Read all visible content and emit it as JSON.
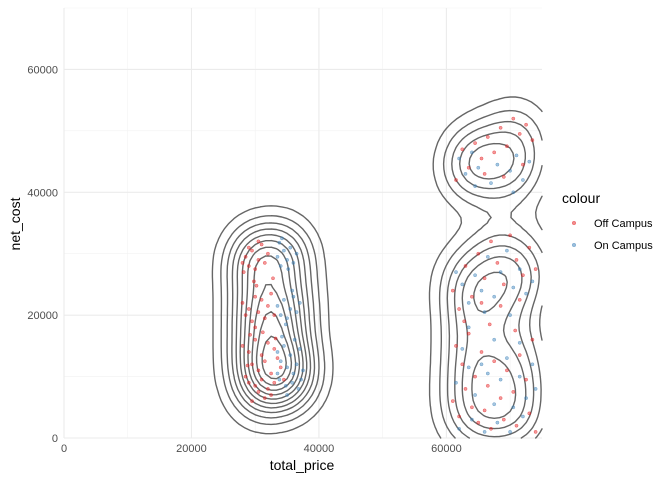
{
  "chart_data": {
    "type": "scatter",
    "title": "",
    "xlabel": "total_price",
    "ylabel": "net_cost",
    "xlim": [
      0,
      75000
    ],
    "ylim": [
      0,
      70000
    ],
    "x_ticks": [
      0,
      20000,
      40000,
      60000
    ],
    "y_ticks": [
      0,
      20000,
      40000,
      60000
    ],
    "grid": true,
    "legend": {
      "title": "colour",
      "position": "right",
      "entries": [
        {
          "label": "Off Campus",
          "color": "#e41a1c"
        },
        {
          "label": "On Campus",
          "color": "#377eb8"
        }
      ]
    },
    "contour_color": "#666666",
    "series": [
      {
        "name": "Off Campus",
        "color": "#e41a1c",
        "points": [
          [
            28000,
            28500
          ],
          [
            28500,
            29500
          ],
          [
            29000,
            28000
          ],
          [
            29500,
            30500
          ],
          [
            30000,
            27500
          ],
          [
            30500,
            29000
          ],
          [
            31000,
            31500
          ],
          [
            31500,
            28500
          ],
          [
            32000,
            30000
          ],
          [
            30500,
            32000
          ],
          [
            29000,
            31000
          ],
          [
            28200,
            27000
          ],
          [
            28000,
            22000
          ],
          [
            29000,
            21000
          ],
          [
            30000,
            23000
          ],
          [
            30500,
            20500
          ],
          [
            31000,
            22500
          ],
          [
            32000,
            21500
          ],
          [
            28500,
            20000
          ],
          [
            29500,
            19000
          ],
          [
            31500,
            19500
          ],
          [
            30000,
            18000
          ],
          [
            32500,
            23500
          ],
          [
            33000,
            20000
          ],
          [
            28000,
            15000
          ],
          [
            29000,
            14000
          ],
          [
            30000,
            16000
          ],
          [
            31000,
            13500
          ],
          [
            32000,
            15500
          ],
          [
            33000,
            14500
          ],
          [
            29500,
            12000
          ],
          [
            30500,
            11000
          ],
          [
            31500,
            12500
          ],
          [
            32500,
            10500
          ],
          [
            33500,
            13000
          ],
          [
            34000,
            11500
          ],
          [
            28500,
            10000
          ],
          [
            29000,
            9000
          ],
          [
            30000,
            8500
          ],
          [
            31000,
            9500
          ],
          [
            32000,
            8000
          ],
          [
            33000,
            9000
          ],
          [
            30500,
            7500
          ],
          [
            31500,
            6500
          ],
          [
            32500,
            7000
          ],
          [
            29500,
            6000
          ],
          [
            34500,
            9500
          ],
          [
            28800,
            11800
          ],
          [
            29200,
            16800
          ],
          [
            31200,
            17200
          ],
          [
            33200,
            16200
          ],
          [
            30200,
            24800
          ],
          [
            29800,
            25500
          ],
          [
            32800,
            26000
          ],
          [
            61500,
            42000
          ],
          [
            62500,
            47000
          ],
          [
            63500,
            44000
          ],
          [
            64500,
            48000
          ],
          [
            65500,
            45500
          ],
          [
            66500,
            49000
          ],
          [
            67500,
            46500
          ],
          [
            68500,
            50500
          ],
          [
            69500,
            47500
          ],
          [
            70500,
            52000
          ],
          [
            71500,
            49500
          ],
          [
            72500,
            51000
          ],
          [
            73500,
            48500
          ],
          [
            66000,
            43000
          ],
          [
            69000,
            42500
          ],
          [
            72000,
            44500
          ],
          [
            61000,
            24000
          ],
          [
            62000,
            21000
          ],
          [
            63000,
            28000
          ],
          [
            64000,
            23000
          ],
          [
            65000,
            30000
          ],
          [
            66000,
            26000
          ],
          [
            67000,
            32000
          ],
          [
            68000,
            28500
          ],
          [
            69000,
            25000
          ],
          [
            70000,
            33000
          ],
          [
            71000,
            29000
          ],
          [
            72000,
            26500
          ],
          [
            73000,
            31000
          ],
          [
            74000,
            27500
          ],
          [
            65500,
            22000
          ],
          [
            68500,
            21500
          ],
          [
            71500,
            22500
          ],
          [
            61500,
            15000
          ],
          [
            62500,
            12000
          ],
          [
            63500,
            17000
          ],
          [
            64500,
            10000
          ],
          [
            65500,
            14000
          ],
          [
            66500,
            8500
          ],
          [
            67500,
            12500
          ],
          [
            68500,
            6500
          ],
          [
            69500,
            11000
          ],
          [
            70500,
            7500
          ],
          [
            71500,
            13500
          ],
          [
            72500,
            9500
          ],
          [
            73500,
            16000
          ],
          [
            61000,
            6000
          ],
          [
            62000,
            3500
          ],
          [
            63000,
            8000
          ],
          [
            64000,
            5000
          ],
          [
            65000,
            2500
          ],
          [
            66000,
            4500
          ],
          [
            67000,
            1500
          ],
          [
            69000,
            3000
          ],
          [
            71000,
            2000
          ],
          [
            73000,
            4000
          ],
          [
            74000,
            1000
          ],
          [
            62800,
            19000
          ],
          [
            66800,
            18500
          ],
          [
            70800,
            17500
          ]
        ]
      },
      {
        "name": "On Campus",
        "color": "#377eb8",
        "points": [
          [
            33500,
            29500
          ],
          [
            34000,
            28000
          ],
          [
            34500,
            30500
          ],
          [
            35000,
            29000
          ],
          [
            35500,
            31000
          ],
          [
            36000,
            28500
          ],
          [
            33800,
            31800
          ],
          [
            35200,
            27500
          ],
          [
            36500,
            30000
          ],
          [
            34200,
            32500
          ],
          [
            33500,
            21500
          ],
          [
            34000,
            20000
          ],
          [
            34500,
            22500
          ],
          [
            35000,
            19500
          ],
          [
            35500,
            21000
          ],
          [
            36000,
            23000
          ],
          [
            36500,
            20500
          ],
          [
            37000,
            22000
          ],
          [
            34800,
            18500
          ],
          [
            35800,
            24000
          ],
          [
            33500,
            14000
          ],
          [
            34000,
            12500
          ],
          [
            34500,
            15000
          ],
          [
            35000,
            11500
          ],
          [
            35500,
            13500
          ],
          [
            36000,
            10500
          ],
          [
            36500,
            12000
          ],
          [
            37000,
            14500
          ],
          [
            33800,
            9500
          ],
          [
            34800,
            8500
          ],
          [
            35800,
            9000
          ],
          [
            36800,
            8000
          ],
          [
            37500,
            11000
          ],
          [
            34200,
            16500
          ],
          [
            36200,
            16000
          ],
          [
            35000,
            7000
          ],
          [
            33500,
            10500
          ],
          [
            37200,
            9500
          ],
          [
            62000,
            45500
          ],
          [
            63000,
            43000
          ],
          [
            64000,
            46500
          ],
          [
            65000,
            44000
          ],
          [
            67000,
            41500
          ],
          [
            68000,
            44500
          ],
          [
            70000,
            43500
          ],
          [
            71000,
            46000
          ],
          [
            72000,
            42000
          ],
          [
            73000,
            45000
          ],
          [
            64500,
            41000
          ],
          [
            70500,
            40000
          ],
          [
            61500,
            27000
          ],
          [
            62500,
            25000
          ],
          [
            63500,
            22000
          ],
          [
            64500,
            26500
          ],
          [
            65500,
            24000
          ],
          [
            66500,
            29500
          ],
          [
            67500,
            23000
          ],
          [
            68500,
            27000
          ],
          [
            69500,
            30500
          ],
          [
            70500,
            24500
          ],
          [
            71500,
            27500
          ],
          [
            72500,
            23500
          ],
          [
            73500,
            25500
          ],
          [
            66000,
            20500
          ],
          [
            70000,
            20000
          ],
          [
            61500,
            9000
          ],
          [
            62500,
            14500
          ],
          [
            63500,
            11500
          ],
          [
            64500,
            7000
          ],
          [
            65500,
            12000
          ],
          [
            66500,
            10500
          ],
          [
            67500,
            5500
          ],
          [
            68500,
            9500
          ],
          [
            69500,
            13000
          ],
          [
            70500,
            5000
          ],
          [
            71500,
            10000
          ],
          [
            72500,
            6500
          ],
          [
            73500,
            12000
          ],
          [
            62000,
            1500
          ],
          [
            64000,
            3000
          ],
          [
            66000,
            1000
          ],
          [
            68000,
            2500
          ],
          [
            70000,
            1000
          ],
          [
            72000,
            3500
          ],
          [
            63500,
            18000
          ],
          [
            67500,
            16000
          ],
          [
            71500,
            15500
          ],
          [
            74000,
            8000
          ]
        ]
      }
    ]
  }
}
